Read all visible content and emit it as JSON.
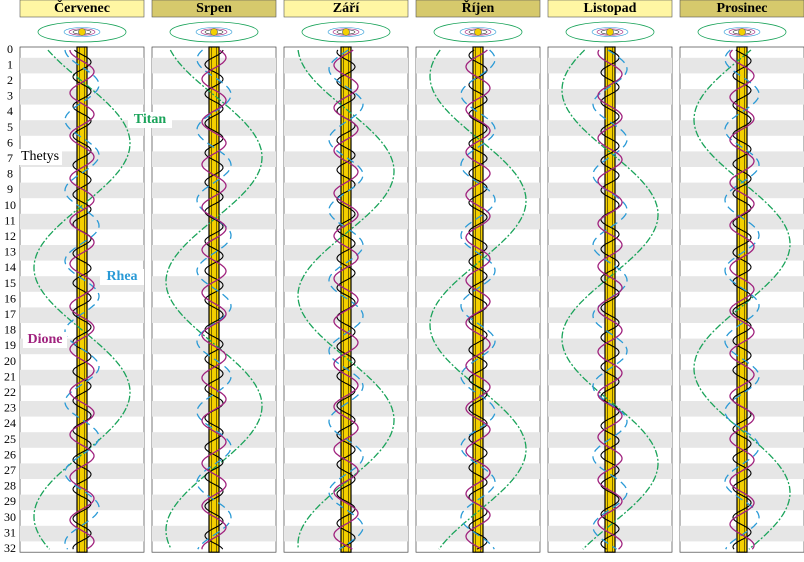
{
  "months": [
    "Červenec",
    "Srpen",
    "Září",
    "Říjen",
    "Listopad",
    "Prosinec"
  ],
  "days": [
    0,
    1,
    2,
    3,
    4,
    5,
    6,
    7,
    8,
    9,
    10,
    11,
    12,
    13,
    14,
    15,
    16,
    17,
    18,
    19,
    20,
    21,
    22,
    23,
    24,
    25,
    26,
    27,
    28,
    29,
    30,
    31,
    32
  ],
  "moons": [
    {
      "name": "Titan",
      "color": "#1aa35a"
    },
    {
      "name": "Thetys",
      "color": "#000000"
    },
    {
      "name": "Rhea",
      "color": "#2a9ad6"
    },
    {
      "name": "Dione",
      "color": "#a0227e"
    }
  ]
}
